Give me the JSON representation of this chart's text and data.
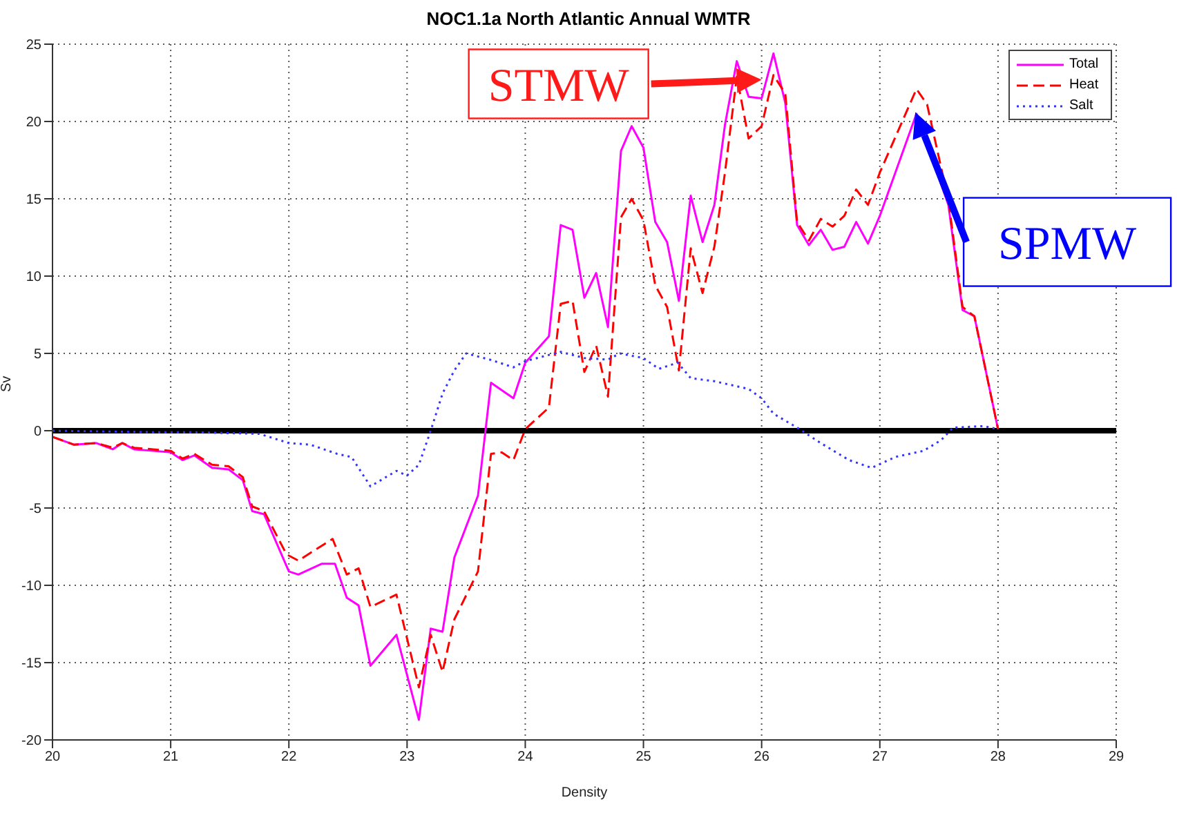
{
  "chart_data": {
    "type": "line",
    "title": "NOC1.1a North Atlantic Annual WMTR",
    "xlabel": "Density",
    "ylabel": "Sv",
    "xlim": [
      20,
      29
    ],
    "xticks": [
      20,
      21,
      22,
      23,
      24,
      25,
      26,
      27,
      28,
      29
    ],
    "ylim": [
      -20,
      25
    ],
    "yticks": [
      -20,
      -15,
      -10,
      -5,
      0,
      5,
      10,
      15,
      20,
      25
    ],
    "grid": true,
    "legend": "top right",
    "marker": "none",
    "ref_lines": [
      {
        "axis": "y",
        "value": 0,
        "color": "#000000"
      }
    ],
    "annotations": [
      {
        "text": "STMW",
        "x": 26.0,
        "y": 22.7
      },
      {
        "text": "SPMW",
        "x": 27.3,
        "y": 20.6
      }
    ],
    "series": [
      {
        "name": "Total",
        "color": "#ff00ff",
        "line_style": "solid",
        "x": [
          20.0,
          20.18,
          20.37,
          20.51,
          20.59,
          20.69,
          20.85,
          21.0,
          21.1,
          21.2,
          21.35,
          21.49,
          21.61,
          21.69,
          21.79,
          22.0,
          22.08,
          22.28,
          22.39,
          22.49,
          22.59,
          22.69,
          22.91,
          23.1,
          23.2,
          23.3,
          23.4,
          23.6,
          23.71,
          23.9,
          24.0,
          24.2,
          24.3,
          24.4,
          24.5,
          24.6,
          24.7,
          24.81,
          24.9,
          25.0,
          25.1,
          25.2,
          25.3,
          25.4,
          25.5,
          25.6,
          25.69,
          25.79,
          25.89,
          26.0,
          26.1,
          26.2,
          26.3,
          26.4,
          26.5,
          26.6,
          26.7,
          26.8,
          26.9,
          27.0,
          27.31,
          27.58,
          27.7,
          27.8,
          28.0
        ],
        "values": [
          -0.4,
          -0.9,
          -0.8,
          -1.2,
          -0.8,
          -1.2,
          -1.3,
          -1.4,
          -1.9,
          -1.6,
          -2.4,
          -2.5,
          -3.2,
          -5.2,
          -5.4,
          -9.1,
          -9.3,
          -8.6,
          -8.6,
          -10.8,
          -11.3,
          -15.2,
          -13.2,
          -18.7,
          -12.8,
          -13.0,
          -8.2,
          -4.2,
          3.1,
          2.1,
          4.4,
          6.1,
          13.3,
          13.0,
          8.6,
          10.2,
          6.7,
          18.1,
          19.7,
          18.3,
          13.5,
          12.2,
          8.4,
          15.2,
          12.2,
          14.6,
          19.8,
          23.9,
          21.6,
          21.5,
          24.4,
          21.2,
          13.3,
          12.0,
          13.0,
          11.7,
          11.9,
          13.5,
          12.1,
          13.9,
          20.5,
          14.6,
          7.8,
          7.4,
          0.1
        ]
      },
      {
        "name": "Heat",
        "color": "#ff0000",
        "line_style": "dashed",
        "x": [
          20.0,
          20.18,
          20.37,
          20.51,
          20.59,
          20.69,
          20.85,
          21.0,
          21.1,
          21.2,
          21.35,
          21.49,
          21.61,
          21.69,
          21.79,
          21.98,
          22.08,
          22.37,
          22.49,
          22.59,
          22.69,
          22.91,
          23.1,
          23.2,
          23.3,
          23.4,
          23.6,
          23.71,
          23.8,
          23.9,
          24.0,
          24.2,
          24.3,
          24.4,
          24.5,
          24.6,
          24.7,
          24.81,
          24.9,
          25.0,
          25.1,
          25.2,
          25.3,
          25.4,
          25.5,
          25.6,
          25.69,
          25.79,
          25.89,
          26.0,
          26.1,
          26.2,
          26.3,
          26.4,
          26.5,
          26.6,
          26.7,
          26.8,
          26.9,
          27.0,
          27.31,
          27.4,
          27.58,
          27.7,
          27.8,
          28.0
        ],
        "values": [
          -0.4,
          -0.9,
          -0.8,
          -1.1,
          -0.8,
          -1.1,
          -1.2,
          -1.3,
          -1.8,
          -1.5,
          -2.2,
          -2.3,
          -3.0,
          -4.9,
          -5.2,
          -8.0,
          -8.4,
          -7.0,
          -9.3,
          -8.9,
          -11.4,
          -10.6,
          -16.6,
          -13.2,
          -15.6,
          -12.2,
          -9.1,
          -1.5,
          -1.4,
          -1.9,
          0.1,
          1.5,
          8.2,
          8.4,
          3.8,
          5.5,
          2.2,
          13.8,
          15.0,
          13.6,
          9.4,
          8.0,
          3.9,
          11.8,
          8.9,
          11.9,
          16.7,
          22.9,
          18.9,
          19.7,
          23.0,
          21.8,
          13.5,
          12.3,
          13.7,
          13.2,
          13.9,
          15.6,
          14.6,
          16.7,
          22.1,
          21.1,
          14.9,
          8.0,
          7.4,
          0.1
        ]
      },
      {
        "name": "Salt",
        "color": "#3333ff",
        "line_style": "dotted",
        "x": [
          20.0,
          20.87,
          21.18,
          21.75,
          22.0,
          22.18,
          22.41,
          22.53,
          22.69,
          22.91,
          23.0,
          23.1,
          23.2,
          23.3,
          23.4,
          23.5,
          23.7,
          23.9,
          24.0,
          24.1,
          24.3,
          24.5,
          24.7,
          24.8,
          25.0,
          25.13,
          25.29,
          25.4,
          25.6,
          25.89,
          26.0,
          26.1,
          26.3,
          26.5,
          26.74,
          26.93,
          27.13,
          27.37,
          27.52,
          27.62,
          27.88,
          28.0
        ],
        "values": [
          0.0,
          -0.1,
          -0.1,
          -0.2,
          -0.8,
          -0.9,
          -1.5,
          -1.7,
          -3.6,
          -2.6,
          -2.9,
          -2.2,
          0.0,
          2.4,
          3.9,
          5.0,
          4.6,
          4.1,
          4.5,
          4.7,
          5.1,
          4.7,
          4.6,
          5.0,
          4.7,
          4.0,
          4.4,
          3.4,
          3.2,
          2.7,
          2.1,
          1.1,
          0.2,
          -0.8,
          -1.9,
          -2.4,
          -1.7,
          -1.3,
          -0.6,
          0.2,
          0.3,
          0.1
        ]
      }
    ]
  }
}
